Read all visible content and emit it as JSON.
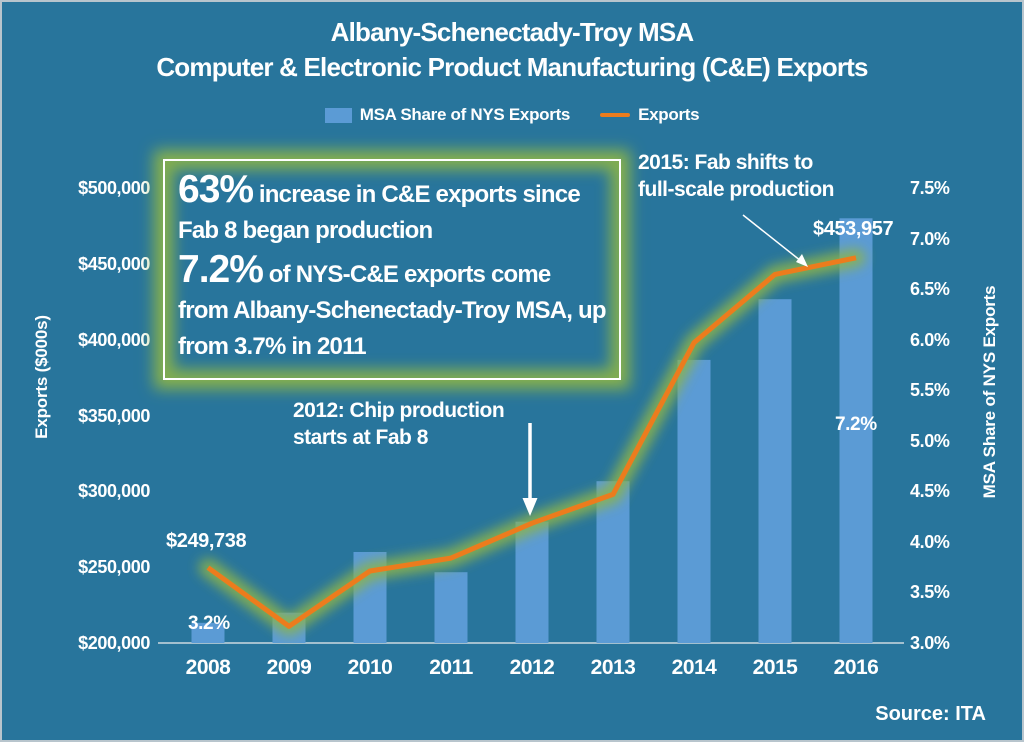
{
  "title": {
    "line1": "Albany-Schenectady-Troy MSA",
    "line2": "Computer & Electronic Product Manufacturing (C&E) Exports"
  },
  "legend": [
    {
      "label": "MSA Share of NYS Exports",
      "swatch": "bar-swatch"
    },
    {
      "label": "Exports",
      "swatch": "line-swatch"
    }
  ],
  "callout_box": {
    "stat1_value": "63%",
    "stat1_text": " increase in  C&E exports since Fab 8 began production",
    "stat2_value": "7.2%",
    "stat2_text": " of NYS-C&E exports come from Albany-Schenectady-Troy MSA, up from 3.7% in 2011"
  },
  "annotations": {
    "a2012": "2012: Chip production starts at Fab 8",
    "a2015": "2015: Fab shifts to full-scale production"
  },
  "data_labels": {
    "exports_first": "$249,738",
    "share_first": "3.2%",
    "exports_last": "$453,957",
    "share_last": "7.2%"
  },
  "source": "Source: ITA",
  "colors": {
    "background": "#28759c",
    "frame": "#b8c5cd",
    "bar": "#5b9bd5",
    "line": "#ec7c1d",
    "glow": "#8cb44c",
    "axis_line": "#ccd9e0",
    "text": "#ffffff"
  },
  "chart_data": {
    "type": "combo-bar-line",
    "title": "Albany-Schenectady-Troy MSA Computer & Electronic Product Manufacturing (C&E) Exports",
    "grid": false,
    "legend_position": "top-center",
    "categories": [
      "2008",
      "2009",
      "2010",
      "2011",
      "2012",
      "2013",
      "2014",
      "2015",
      "2016"
    ],
    "series": [
      {
        "name": "MSA Share of NYS Exports",
        "type": "bar",
        "axis": "right",
        "unit": "percent",
        "values": [
          3.2,
          3.3,
          3.9,
          3.7,
          4.2,
          4.6,
          5.8,
          6.4,
          7.2
        ]
      },
      {
        "name": "Exports",
        "type": "line",
        "axis": "left",
        "unit": "$000s",
        "values": [
          249738,
          211000,
          247500,
          256000,
          279000,
          298000,
          398000,
          443000,
          453957
        ]
      }
    ],
    "left_axis": {
      "title": "Exports ($000s)",
      "min": 200000,
      "max": 500000,
      "step": 50000,
      "ticks": [
        "$200,000",
        "$250,000",
        "$300,000",
        "$350,000",
        "$400,000",
        "$450,000",
        "$500,000"
      ]
    },
    "right_axis": {
      "title": "MSA Share of NYS Exports",
      "min": 3.0,
      "max": 7.5,
      "step": 0.5,
      "ticks": [
        "3.0%",
        "3.5%",
        "4.0%",
        "4.5%",
        "5.0%",
        "5.5%",
        "6.0%",
        "6.5%",
        "7.0%",
        "7.5%"
      ]
    }
  }
}
